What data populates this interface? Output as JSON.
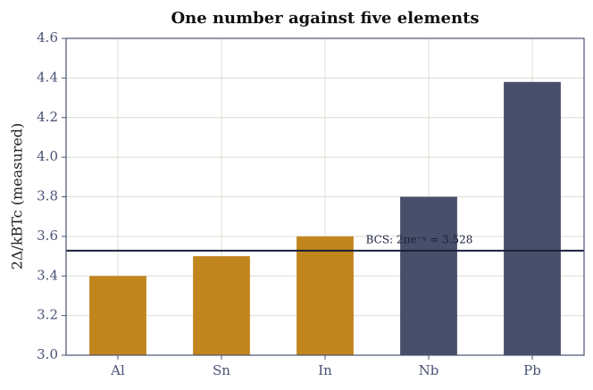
{
  "chart_data": {
    "type": "bar",
    "title": "One number against five elements",
    "ylabel": "2Δ/kBTc (measured)",
    "categories": [
      "Al",
      "Sn",
      "In",
      "Nb",
      "Pb"
    ],
    "values": [
      3.4,
      3.5,
      3.6,
      3.8,
      4.38
    ],
    "colors": [
      "#c0861d",
      "#c0861d",
      "#c0861d",
      "#474f6b",
      "#474f6b"
    ],
    "ylim": [
      3.0,
      4.6
    ],
    "yticks": [
      {
        "value": 3,
        "label": "3.0"
      },
      {
        "value": 3.2,
        "label": "3.2"
      },
      {
        "value": 3.4,
        "label": "3.4"
      },
      {
        "value": 3.6,
        "label": "3.6"
      },
      {
        "value": 3.8,
        "label": "3.8"
      },
      {
        "value": 4,
        "label": "4.0"
      },
      {
        "value": 4.2,
        "label": "4.2"
      },
      {
        "value": 4.4,
        "label": "4.4"
      },
      {
        "value": 4.6,
        "label": "4.6"
      }
    ],
    "reference_line": {
      "value": 3.528,
      "label": "BCS: 2πe⁻ᵞ = 3.528",
      "color": "#1a1f3a"
    },
    "grid": true
  }
}
